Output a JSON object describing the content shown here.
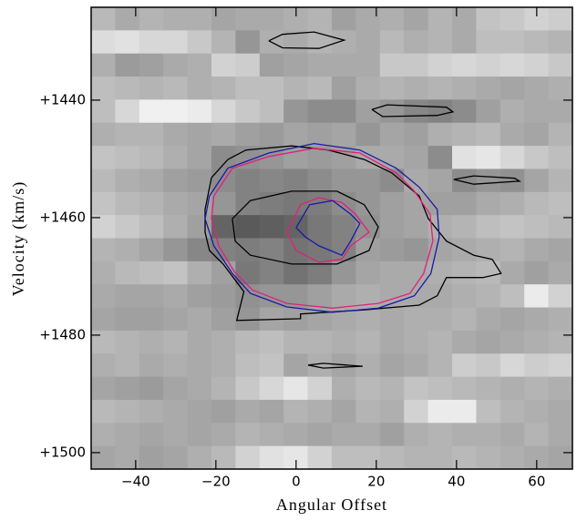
{
  "chart_data": {
    "type": "heatmap",
    "x_label": "Angular Offset",
    "y_label": "Velocity (km/s)",
    "xlim": [
      -51.1,
      68.9
    ],
    "ylim": [
      1424.2,
      1502.8
    ],
    "y_inverted": true,
    "xticks": [
      {
        "value": -40,
        "label": "−40"
      },
      {
        "value": -20,
        "label": "−20"
      },
      0,
      20,
      40,
      60
    ],
    "yticks": [
      {
        "value": 1440,
        "label": "+1440"
      },
      {
        "value": 1460,
        "label": "+1460"
      },
      {
        "value": 1480,
        "label": "+1480"
      },
      {
        "value": 1500,
        "label": "+1500"
      }
    ],
    "z": [
      [
        185,
        170,
        180,
        175,
        175,
        165,
        170,
        170,
        175,
        180,
        160,
        170,
        175,
        165,
        180,
        170,
        195,
        200,
        210,
        205
      ],
      [
        220,
        225,
        215,
        215,
        200,
        180,
        150,
        175,
        170,
        180,
        175,
        170,
        185,
        175,
        180,
        170,
        190,
        190,
        185,
        180
      ],
      [
        175,
        155,
        160,
        170,
        175,
        210,
        205,
        160,
        165,
        170,
        170,
        170,
        200,
        200,
        210,
        215,
        210,
        215,
        210,
        200
      ],
      [
        190,
        185,
        180,
        185,
        175,
        180,
        190,
        190,
        180,
        185,
        160,
        175,
        180,
        175,
        180,
        175,
        170,
        165,
        170,
        175
      ],
      [
        190,
        215,
        240,
        240,
        235,
        215,
        200,
        190,
        150,
        140,
        140,
        160,
        150,
        135,
        130,
        140,
        160,
        175,
        170,
        170
      ],
      [
        175,
        180,
        180,
        170,
        165,
        170,
        160,
        155,
        165,
        160,
        165,
        150,
        165,
        160,
        175,
        180,
        185,
        170,
        165,
        180
      ],
      [
        195,
        190,
        185,
        175,
        165,
        140,
        145,
        150,
        160,
        155,
        160,
        170,
        170,
        165,
        140,
        225,
        230,
        215,
        200,
        190
      ],
      [
        185,
        175,
        170,
        160,
        155,
        140,
        130,
        135,
        130,
        140,
        150,
        150,
        140,
        170,
        165,
        140,
        150,
        145,
        165,
        180
      ],
      [
        195,
        185,
        180,
        170,
        165,
        150,
        130,
        125,
        120,
        125,
        140,
        150,
        160,
        165,
        160,
        160,
        170,
        175,
        185,
        190
      ],
      [
        210,
        200,
        190,
        175,
        160,
        100,
        90,
        95,
        100,
        120,
        130,
        145,
        160,
        165,
        175,
        180,
        190,
        195,
        190,
        185
      ],
      [
        180,
        175,
        165,
        150,
        135,
        130,
        125,
        130,
        115,
        120,
        130,
        160,
        155,
        150,
        165,
        170,
        175,
        180,
        170,
        165
      ],
      [
        175,
        185,
        190,
        195,
        175,
        160,
        120,
        130,
        115,
        125,
        150,
        165,
        170,
        170,
        175,
        180,
        185,
        170,
        160,
        170
      ],
      [
        170,
        165,
        165,
        170,
        160,
        155,
        145,
        150,
        150,
        160,
        170,
        175,
        170,
        170,
        170,
        175,
        180,
        190,
        235,
        210
      ],
      [
        165,
        160,
        160,
        165,
        170,
        160,
        150,
        165,
        160,
        165,
        170,
        175,
        170,
        175,
        175,
        180,
        170,
        165,
        170,
        175
      ],
      [
        185,
        180,
        175,
        180,
        170,
        175,
        185,
        190,
        180,
        180,
        175,
        180,
        170,
        175,
        180,
        170,
        165,
        170,
        175,
        180
      ],
      [
        175,
        180,
        170,
        175,
        170,
        175,
        190,
        195,
        165,
        175,
        165,
        175,
        165,
        170,
        180,
        205,
        200,
        215,
        205,
        210
      ],
      [
        165,
        160,
        155,
        165,
        170,
        180,
        200,
        215,
        230,
        210,
        175,
        185,
        180,
        195,
        190,
        185,
        180,
        175,
        180,
        175
      ],
      [
        185,
        180,
        175,
        170,
        165,
        160,
        170,
        165,
        180,
        175,
        165,
        180,
        175,
        210,
        235,
        235,
        190,
        180,
        175,
        170
      ],
      [
        175,
        170,
        165,
        170,
        165,
        170,
        180,
        175,
        170,
        165,
        170,
        170,
        160,
        175,
        180,
        175,
        175,
        170,
        180,
        170
      ],
      [
        165,
        170,
        160,
        165,
        175,
        185,
        210,
        225,
        230,
        210,
        190,
        190,
        185,
        180,
        180,
        185,
        180,
        175,
        170,
        165
      ]
    ],
    "contours": [
      {
        "color": "#000000",
        "x": [
          -21.1,
          -17.0,
          -12.5,
          -1.1,
          8.0,
          17.0,
          23.9,
          30.7,
          33.0,
          37.5,
          44.3,
          48.9,
          51.1,
          46.6,
          37.5,
          35.2,
          30.7,
          17.0,
          1.1,
          1.1,
          -14.8,
          -13.0,
          -18.2,
          -21.6,
          -22.7,
          -22.7,
          -21.1
        ],
        "y": [
          1453.2,
          1450.1,
          1448.5,
          1447.8,
          1448.5,
          1450.1,
          1452.4,
          1456.3,
          1460.2,
          1464.0,
          1466.4,
          1467.1,
          1469.5,
          1470.2,
          1470.2,
          1473.3,
          1474.9,
          1475.7,
          1476.4,
          1477.2,
          1477.5,
          1472.6,
          1467.9,
          1465.6,
          1462.5,
          1458.6,
          1453.2
        ]
      },
      {
        "color": "#000000",
        "x": [
          -15.9,
          -11.4,
          -1.1,
          10.2,
          17.0,
          20.5,
          18.2,
          10.2,
          -1.1,
          -11.4,
          -15.2,
          -15.9
        ],
        "y": [
          1460.2,
          1457.1,
          1455.5,
          1455.5,
          1457.8,
          1461.6,
          1465.6,
          1467.9,
          1467.9,
          1466.4,
          1464.0,
          1460.2
        ]
      },
      {
        "color": "#000000",
        "x": [
          -6.8,
          -3.4,
          4.5,
          12.0,
          5.7,
          -3.4,
          -6.8
        ],
        "y": [
          1429.9,
          1428.8,
          1428.4,
          1429.8,
          1431.2,
          1431.1,
          1429.9
        ]
      },
      {
        "color": "#000000",
        "x": [
          18.9,
          22.7,
          37.5,
          39.1,
          35.2,
          21.6,
          18.9
        ],
        "y": [
          1441.6,
          1440.8,
          1441.2,
          1442.0,
          1442.6,
          1442.8,
          1441.6
        ]
      },
      {
        "color": "#000000",
        "x": [
          39.3,
          44.3,
          54.5,
          55.7,
          44.3,
          39.3
        ],
        "y": [
          1453.5,
          1452.9,
          1453.3,
          1453.8,
          1454.3,
          1453.5
        ]
      },
      {
        "color": "#000000",
        "x": [
          3.0,
          6.8,
          16.6,
          6.8,
          3.0
        ],
        "y": [
          1485.1,
          1484.8,
          1485.3,
          1485.6,
          1485.1
        ]
      },
      {
        "color": "#1a1aa6",
        "x": [
          -21.6,
          -17.0,
          -6.8,
          4.5,
          15.9,
          25.0,
          30.7,
          35.2,
          35.7,
          33.6,
          29.5,
          20.5,
          9.1,
          -2.3,
          -11.4,
          -15.9,
          -20.5,
          -22.7,
          -21.6
        ],
        "y": [
          1456.3,
          1451.6,
          1449.0,
          1447.4,
          1448.5,
          1451.6,
          1454.8,
          1458.6,
          1463.3,
          1469.5,
          1473.3,
          1475.4,
          1476.1,
          1475.2,
          1472.9,
          1469.5,
          1464.8,
          1460.2,
          1456.3
        ]
      },
      {
        "color": "#e0207a",
        "x": [
          -20.5,
          -15.9,
          -6.8,
          4.5,
          15.9,
          25.0,
          29.5,
          33.4,
          34.1,
          31.8,
          28.4,
          20.5,
          9.1,
          -2.3,
          -10.9,
          -15.4,
          -19.3,
          -21.1,
          -20.5
        ],
        "y": [
          1456.3,
          1451.6,
          1449.6,
          1448.2,
          1449.0,
          1452.4,
          1455.5,
          1459.4,
          1464.0,
          1469.5,
          1472.9,
          1474.6,
          1475.4,
          1474.6,
          1472.3,
          1469.2,
          1464.8,
          1460.2,
          1456.3
        ]
      },
      {
        "color": "#e0207a",
        "x": [
          -2.3,
          1.1,
          5.7,
          11.4,
          14.8,
          18.2,
          13.6,
          11.4,
          5.7,
          0.0,
          -2.3
        ],
        "y": [
          1462.5,
          1457.8,
          1456.6,
          1457.4,
          1459.4,
          1462.5,
          1464.8,
          1467.1,
          1467.6,
          1465.6,
          1462.5
        ]
      },
      {
        "color": "#1a1aa6",
        "x": [
          0.0,
          3.4,
          9.1,
          13.6,
          15.9,
          13.6,
          11.4,
          5.7,
          2.3,
          0.0
        ],
        "y": [
          1461.7,
          1457.8,
          1457.1,
          1459.4,
          1461.0,
          1464.0,
          1466.4,
          1464.8,
          1463.3,
          1461.7
        ]
      }
    ]
  }
}
